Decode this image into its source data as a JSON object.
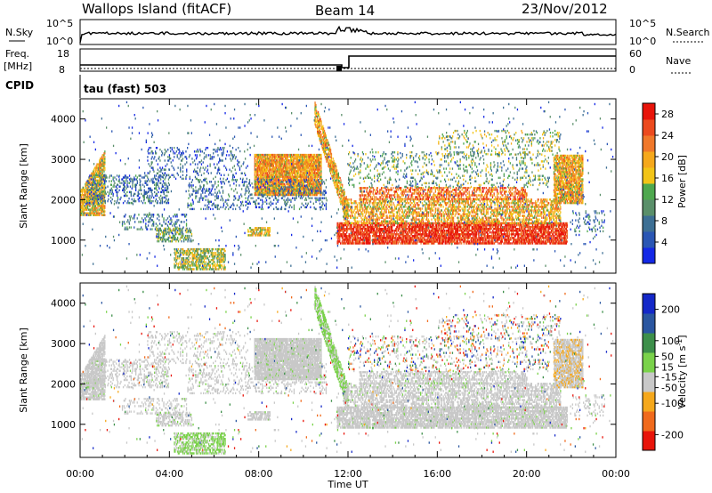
{
  "header": {
    "title": "Wallops Island (fitACF)",
    "beam": "Beam 14",
    "date": "23/Nov/2012"
  },
  "top_panel": {
    "left_label": "N.Sky",
    "right_label": "N.Search",
    "left_ticks": [
      "10^5",
      "10^0"
    ],
    "right_ticks": [
      "10^5",
      "10^0"
    ]
  },
  "freq_panel": {
    "left_label_top": "Freq.",
    "left_label_bottom": "[MHz]",
    "right_label": "Nave",
    "left_ticks": [
      "18",
      "8"
    ],
    "right_ticks": [
      "60",
      "0"
    ]
  },
  "cpid": {
    "label": "CPID",
    "value": "tau (fast) 503"
  },
  "chart_data": [
    {
      "type": "heatmap",
      "ylabel": "Slant Range [km]",
      "xlabel": "",
      "x_range_hours": [
        0,
        24
      ],
      "ylim": [
        180,
        4500
      ],
      "yticks": [
        "4000",
        "3000",
        "2000",
        "1000"
      ],
      "ytick_values": [
        4000,
        3000,
        2000,
        1000
      ],
      "colorbar": {
        "label": "Power [dB]",
        "ticks": [
          "28",
          "24",
          "20",
          "16",
          "12",
          "8",
          "4"
        ],
        "tick_values": [
          28,
          24,
          20,
          16,
          12,
          8,
          4
        ],
        "range": [
          0,
          30
        ],
        "colors": [
          "#1428e6",
          "#2a56b4",
          "#3d6f94",
          "#5a8f6a",
          "#4ea84e",
          "#f2c418",
          "#f5a81c",
          "#f0782a",
          "#ec4a1e",
          "#e8140a"
        ]
      }
    },
    {
      "type": "heatmap",
      "ylabel": "Slant Range [km]",
      "xlabel": "Time UT",
      "x_range_hours": [
        0,
        24
      ],
      "ylim": [
        180,
        4500
      ],
      "yticks": [
        "4000",
        "3000",
        "2000",
        "1000"
      ],
      "ytick_values": [
        4000,
        3000,
        2000,
        1000
      ],
      "xticks": [
        "00:00",
        "04:00",
        "08:00",
        "12:00",
        "16:00",
        "20:00",
        "00:00"
      ],
      "xtick_values": [
        0,
        4,
        8,
        12,
        16,
        20,
        24
      ],
      "colorbar": {
        "label_main": "Velocity [m s",
        "label_sup": "-1",
        "label_end": "]",
        "ticks": [
          "200",
          "100",
          "50",
          "15",
          "-15",
          "-50",
          "-100",
          "-200"
        ],
        "tick_values": [
          200,
          100,
          50,
          15,
          -15,
          -50,
          -100,
          -200
        ],
        "range": [
          -250,
          250
        ],
        "colors": [
          "#e8140a",
          "#f06a1c",
          "#f5a81c",
          "#c8c8c8",
          "#7ad24a",
          "#3d8f4a",
          "#2a56a0",
          "#1428c8"
        ]
      }
    }
  ]
}
